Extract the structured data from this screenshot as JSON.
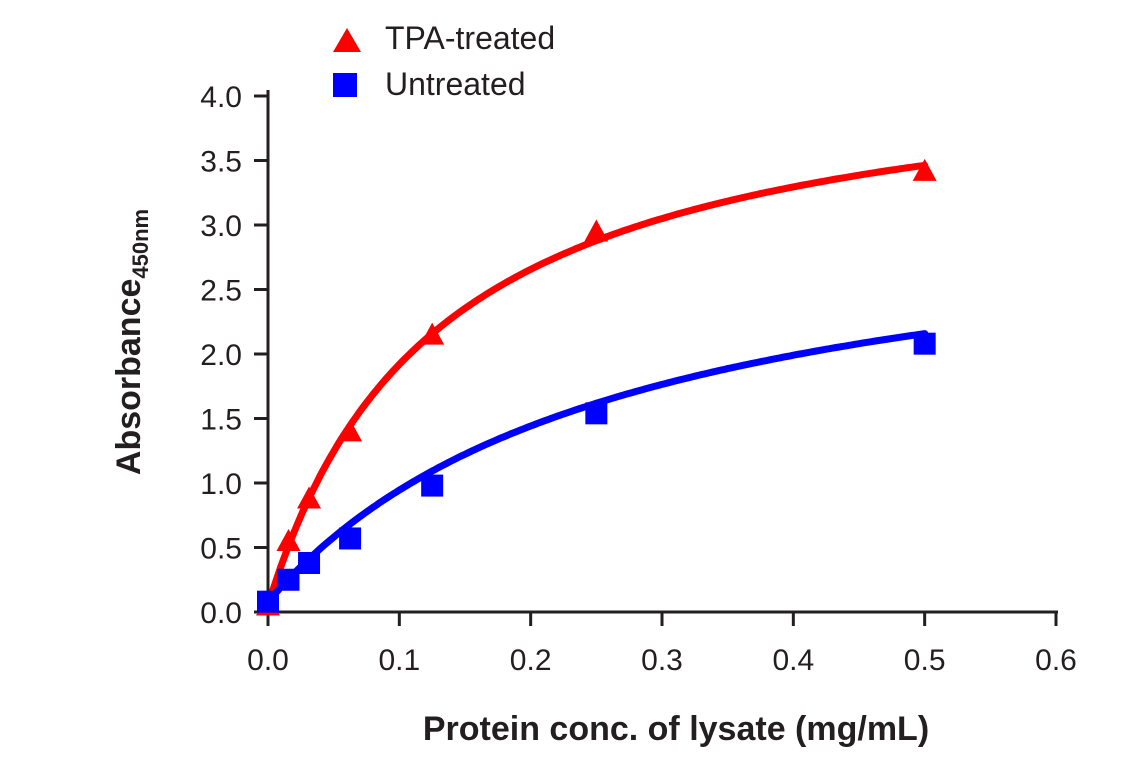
{
  "chart_data": {
    "type": "scatter",
    "title": "",
    "xlabel": "Protein conc. of lysate (mg/mL)",
    "ylabel": "Absorbance",
    "ylabel_subscript": "450nm",
    "xlim": [
      0,
      0.6
    ],
    "ylim": [
      0,
      4.0
    ],
    "xticks": [
      "0.0",
      "0.1",
      "0.2",
      "0.3",
      "0.4",
      "0.5",
      "0.6"
    ],
    "yticks": [
      "0.0",
      "0.5",
      "1.0",
      "1.5",
      "2.0",
      "2.5",
      "3.0",
      "3.5",
      "4.0"
    ],
    "grid": false,
    "legend_position": "top-left",
    "series": [
      {
        "name": "TPA-treated",
        "marker": "triangle",
        "color": "#ff0000",
        "x": [
          0,
          0.0156,
          0.03125,
          0.0625,
          0.125,
          0.25,
          0.5
        ],
        "y": [
          0.05,
          0.55,
          0.88,
          1.4,
          2.15,
          2.95,
          3.42
        ],
        "fit": {
          "vmax": 4.3,
          "km": 0.13,
          "offset": 0.05
        }
      },
      {
        "name": "Untreated",
        "marker": "square",
        "color": "#0000ff",
        "x": [
          0,
          0.0156,
          0.03125,
          0.0625,
          0.125,
          0.25,
          0.5
        ],
        "y": [
          0.08,
          0.25,
          0.38,
          0.57,
          0.98,
          1.54,
          2.08
        ],
        "fit": {
          "vmax": 3.2,
          "km": 0.27,
          "offset": 0.08
        }
      }
    ]
  }
}
